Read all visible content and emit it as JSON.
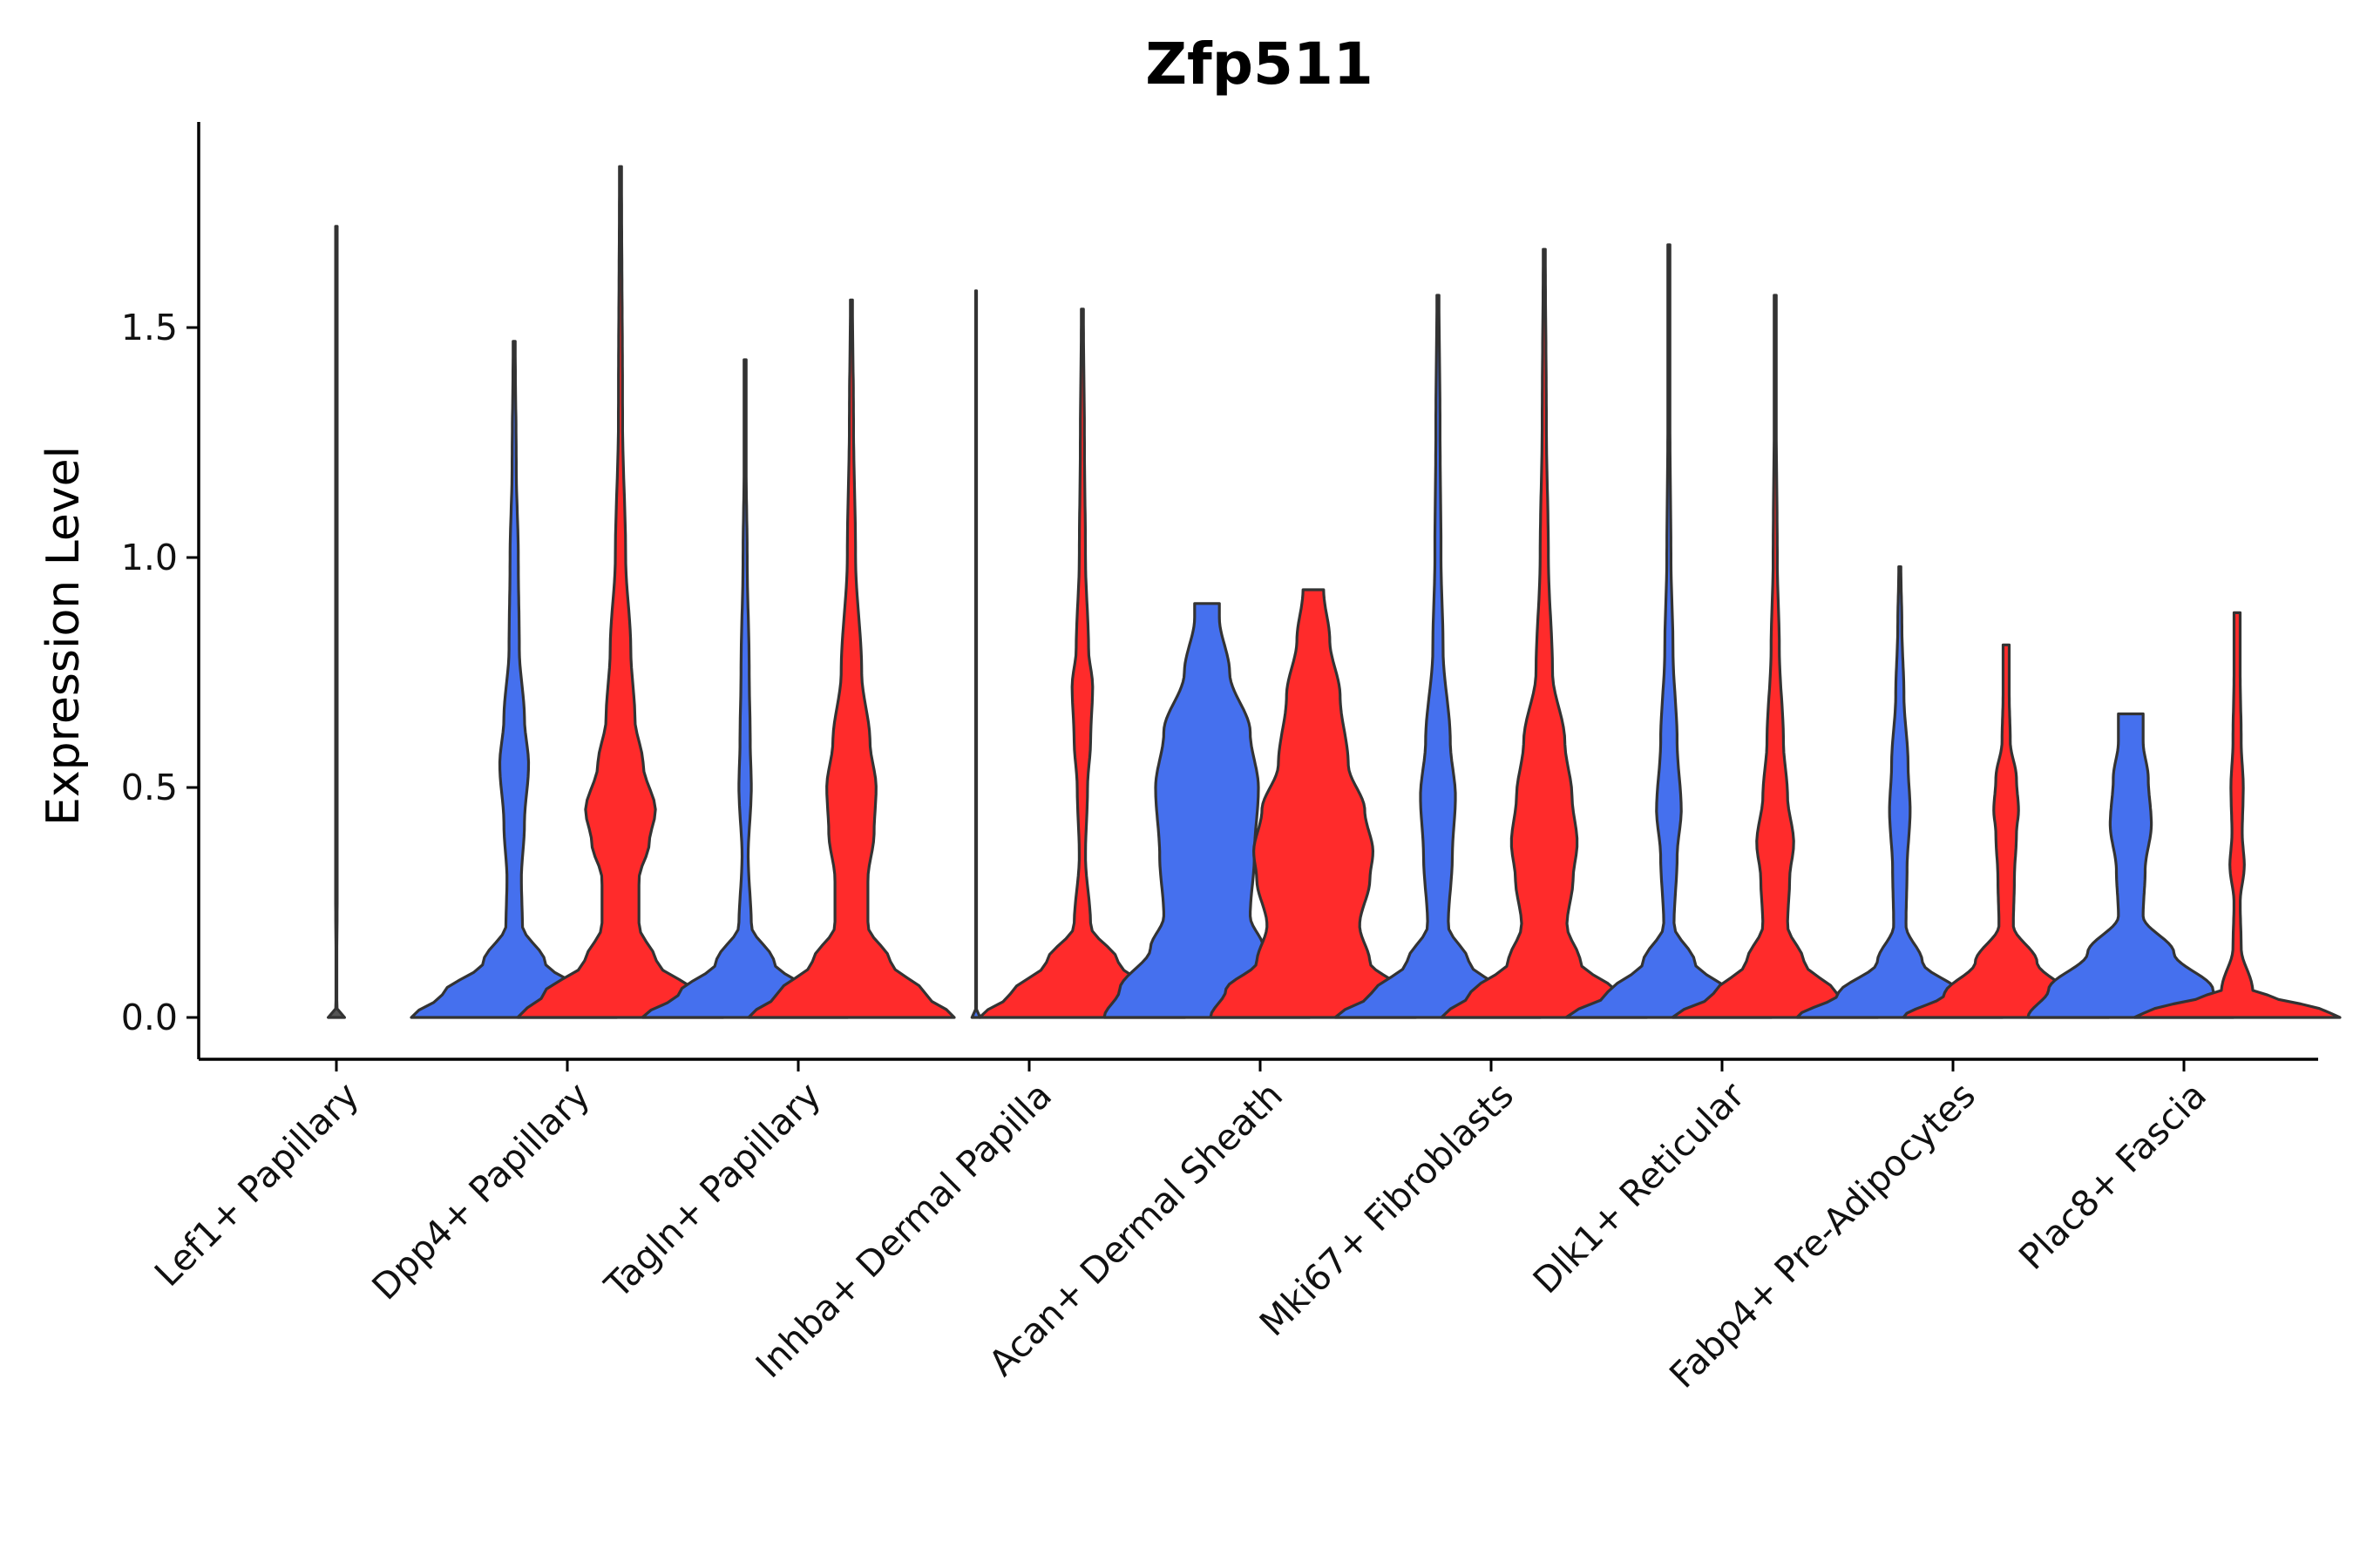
{
  "chart_data": {
    "type": "violin",
    "title": "Zfp511",
    "xlabel": "",
    "ylabel": "Expression Level",
    "ylim": [
      -0.09,
      1.95
    ],
    "yticks": [
      0.0,
      0.5,
      1.0,
      1.5
    ],
    "ytick_labels": [
      "0.0",
      "0.5",
      "1.0",
      "1.5"
    ],
    "grid": false,
    "legend": "none",
    "colors": {
      "group1": "#4570EE",
      "group2": "#FF2B2B",
      "outline": "#333333"
    },
    "categories": [
      "Lef1+ Papillary",
      "Dpp4+ Papillary",
      "Tagln+ Papillary",
      "Inhba+ Dermal Papilla",
      "Acan+ Dermal Sheath",
      "Mki67+ Fibroblasts",
      "Dlk1+ Reticular",
      "Fabp4+ Pre-Adipocytes",
      "Plac8+ Fascia"
    ],
    "series": [
      {
        "name": "group1",
        "color": "#4570EE",
        "max": [
          1.72,
          1.47,
          1.43,
          1.58,
          0.9,
          1.57,
          1.68,
          0.98,
          0.66
        ],
        "density": [
          [
            [
              0,
              0.04
            ],
            [
              0.01,
              0.005
            ],
            [
              0.03,
              0.001
            ],
            [
              0.3,
              0.004
            ],
            [
              1.72,
              0.004
            ]
          ],
          [
            [
              0,
              1
            ],
            [
              0.05,
              0.7
            ],
            [
              0.12,
              0.3
            ],
            [
              0.2,
              0.08
            ],
            [
              0.3,
              0.07
            ],
            [
              0.42,
              0.1
            ],
            [
              0.55,
              0.14
            ],
            [
              0.65,
              0.1
            ],
            [
              0.8,
              0.05
            ],
            [
              1.0,
              0.04
            ],
            [
              1.2,
              0.02
            ],
            [
              1.47,
              0.01
            ]
          ],
          [
            [
              0,
              1
            ],
            [
              0.05,
              0.65
            ],
            [
              0.12,
              0.28
            ],
            [
              0.2,
              0.06
            ],
            [
              0.35,
              0.03
            ],
            [
              0.5,
              0.06
            ],
            [
              0.6,
              0.05
            ],
            [
              0.75,
              0.04
            ],
            [
              1.0,
              0.02
            ],
            [
              1.2,
              0.01
            ],
            [
              1.43,
              0.01
            ]
          ],
          [
            [
              0,
              0.04
            ],
            [
              0.01,
              0.005
            ],
            [
              0.03,
              0.001
            ],
            [
              0.3,
              0.004
            ],
            [
              1.58,
              0.004
            ]
          ],
          [
            [
              0,
              1
            ],
            [
              0.06,
              0.85
            ],
            [
              0.15,
              0.55
            ],
            [
              0.22,
              0.42
            ],
            [
              0.35,
              0.46
            ],
            [
              0.5,
              0.5
            ],
            [
              0.62,
              0.42
            ],
            [
              0.75,
              0.22
            ],
            [
              0.87,
              0.12
            ],
            [
              0.9,
              0.12
            ]
          ],
          [
            [
              0,
              1
            ],
            [
              0.05,
              0.65
            ],
            [
              0.12,
              0.3
            ],
            [
              0.2,
              0.1
            ],
            [
              0.35,
              0.14
            ],
            [
              0.48,
              0.17
            ],
            [
              0.6,
              0.12
            ],
            [
              0.8,
              0.05
            ],
            [
              1.0,
              0.03
            ],
            [
              1.3,
              0.02
            ],
            [
              1.57,
              0.01
            ]
          ],
          [
            [
              0,
              1
            ],
            [
              0.05,
              0.6
            ],
            [
              0.12,
              0.25
            ],
            [
              0.2,
              0.05
            ],
            [
              0.35,
              0.08
            ],
            [
              0.45,
              0.12
            ],
            [
              0.6,
              0.08
            ],
            [
              0.8,
              0.04
            ],
            [
              1.0,
              0.02
            ],
            [
              1.3,
              0.01
            ],
            [
              1.68,
              0.01
            ]
          ],
          [
            [
              0,
              1
            ],
            [
              0.05,
              0.6
            ],
            [
              0.12,
              0.22
            ],
            [
              0.2,
              0.06
            ],
            [
              0.32,
              0.07
            ],
            [
              0.45,
              0.1
            ],
            [
              0.55,
              0.08
            ],
            [
              0.7,
              0.04
            ],
            [
              0.85,
              0.02
            ],
            [
              0.98,
              0.01
            ]
          ],
          [
            [
              0,
              1
            ],
            [
              0.06,
              0.8
            ],
            [
              0.14,
              0.42
            ],
            [
              0.22,
              0.12
            ],
            [
              0.32,
              0.14
            ],
            [
              0.42,
              0.2
            ],
            [
              0.52,
              0.17
            ],
            [
              0.6,
              0.12
            ],
            [
              0.66,
              0.12
            ]
          ]
        ]
      },
      {
        "name": "group2",
        "color": "#FF2B2B",
        "max": [
          null,
          1.85,
          1.56,
          1.54,
          0.93,
          1.67,
          1.57,
          0.81,
          0.88
        ],
        "density": [
          null,
          [
            [
              0,
              1
            ],
            [
              0.05,
              0.75
            ],
            [
              0.12,
              0.35
            ],
            [
              0.2,
              0.18
            ],
            [
              0.3,
              0.18
            ],
            [
              0.38,
              0.28
            ],
            [
              0.45,
              0.34
            ],
            [
              0.55,
              0.22
            ],
            [
              0.65,
              0.14
            ],
            [
              0.8,
              0.1
            ],
            [
              1.0,
              0.05
            ],
            [
              1.3,
              0.02
            ],
            [
              1.85,
              0.01
            ]
          ],
          [
            [
              0,
              1
            ],
            [
              0.05,
              0.72
            ],
            [
              0.12,
              0.38
            ],
            [
              0.2,
              0.16
            ],
            [
              0.3,
              0.16
            ],
            [
              0.4,
              0.22
            ],
            [
              0.5,
              0.24
            ],
            [
              0.6,
              0.18
            ],
            [
              0.75,
              0.1
            ],
            [
              1.0,
              0.04
            ],
            [
              1.3,
              0.02
            ],
            [
              1.56,
              0.01
            ]
          ],
          [
            [
              0,
              1
            ],
            [
              0.05,
              0.7
            ],
            [
              0.12,
              0.35
            ],
            [
              0.2,
              0.08
            ],
            [
              0.35,
              0.03
            ],
            [
              0.5,
              0.05
            ],
            [
              0.6,
              0.08
            ],
            [
              0.72,
              0.1
            ],
            [
              0.8,
              0.06
            ],
            [
              1.0,
              0.03
            ],
            [
              1.25,
              0.02
            ],
            [
              1.54,
              0.01
            ]
          ],
          [
            [
              0,
              1
            ],
            [
              0.06,
              0.85
            ],
            [
              0.12,
              0.55
            ],
            [
              0.2,
              0.45
            ],
            [
              0.3,
              0.55
            ],
            [
              0.36,
              0.58
            ],
            [
              0.45,
              0.5
            ],
            [
              0.55,
              0.34
            ],
            [
              0.7,
              0.26
            ],
            [
              0.82,
              0.16
            ],
            [
              0.93,
              0.1
            ]
          ],
          [
            [
              0,
              1
            ],
            [
              0.05,
              0.72
            ],
            [
              0.12,
              0.35
            ],
            [
              0.2,
              0.22
            ],
            [
              0.3,
              0.28
            ],
            [
              0.38,
              0.32
            ],
            [
              0.48,
              0.27
            ],
            [
              0.6,
              0.2
            ],
            [
              0.75,
              0.08
            ],
            [
              1.0,
              0.04
            ],
            [
              1.3,
              0.02
            ],
            [
              1.67,
              0.01
            ]
          ],
          [
            [
              0,
              1
            ],
            [
              0.05,
              0.6
            ],
            [
              0.12,
              0.28
            ],
            [
              0.2,
              0.12
            ],
            [
              0.3,
              0.14
            ],
            [
              0.38,
              0.18
            ],
            [
              0.48,
              0.12
            ],
            [
              0.6,
              0.08
            ],
            [
              0.8,
              0.04
            ],
            [
              1.0,
              0.02
            ],
            [
              1.3,
              0.01
            ],
            [
              1.57,
              0.01
            ]
          ],
          [
            [
              0,
              1
            ],
            [
              0.05,
              0.6
            ],
            [
              0.12,
              0.3
            ],
            [
              0.2,
              0.07
            ],
            [
              0.3,
              0.08
            ],
            [
              0.4,
              0.1
            ],
            [
              0.45,
              0.12
            ],
            [
              0.52,
              0.1
            ],
            [
              0.6,
              0.04
            ],
            [
              0.7,
              0.03
            ],
            [
              0.8,
              0.03
            ],
            [
              0.81,
              0.03
            ]
          ],
          [
            [
              0,
              1
            ],
            [
              0.02,
              0.8
            ],
            [
              0.04,
              0.4
            ],
            [
              0.06,
              0.15
            ],
            [
              0.15,
              0.04
            ],
            [
              0.25,
              0.03
            ],
            [
              0.33,
              0.07
            ],
            [
              0.4,
              0.05
            ],
            [
              0.5,
              0.06
            ],
            [
              0.6,
              0.04
            ],
            [
              0.75,
              0.03
            ],
            [
              0.88,
              0.03
            ]
          ]
        ]
      }
    ]
  }
}
